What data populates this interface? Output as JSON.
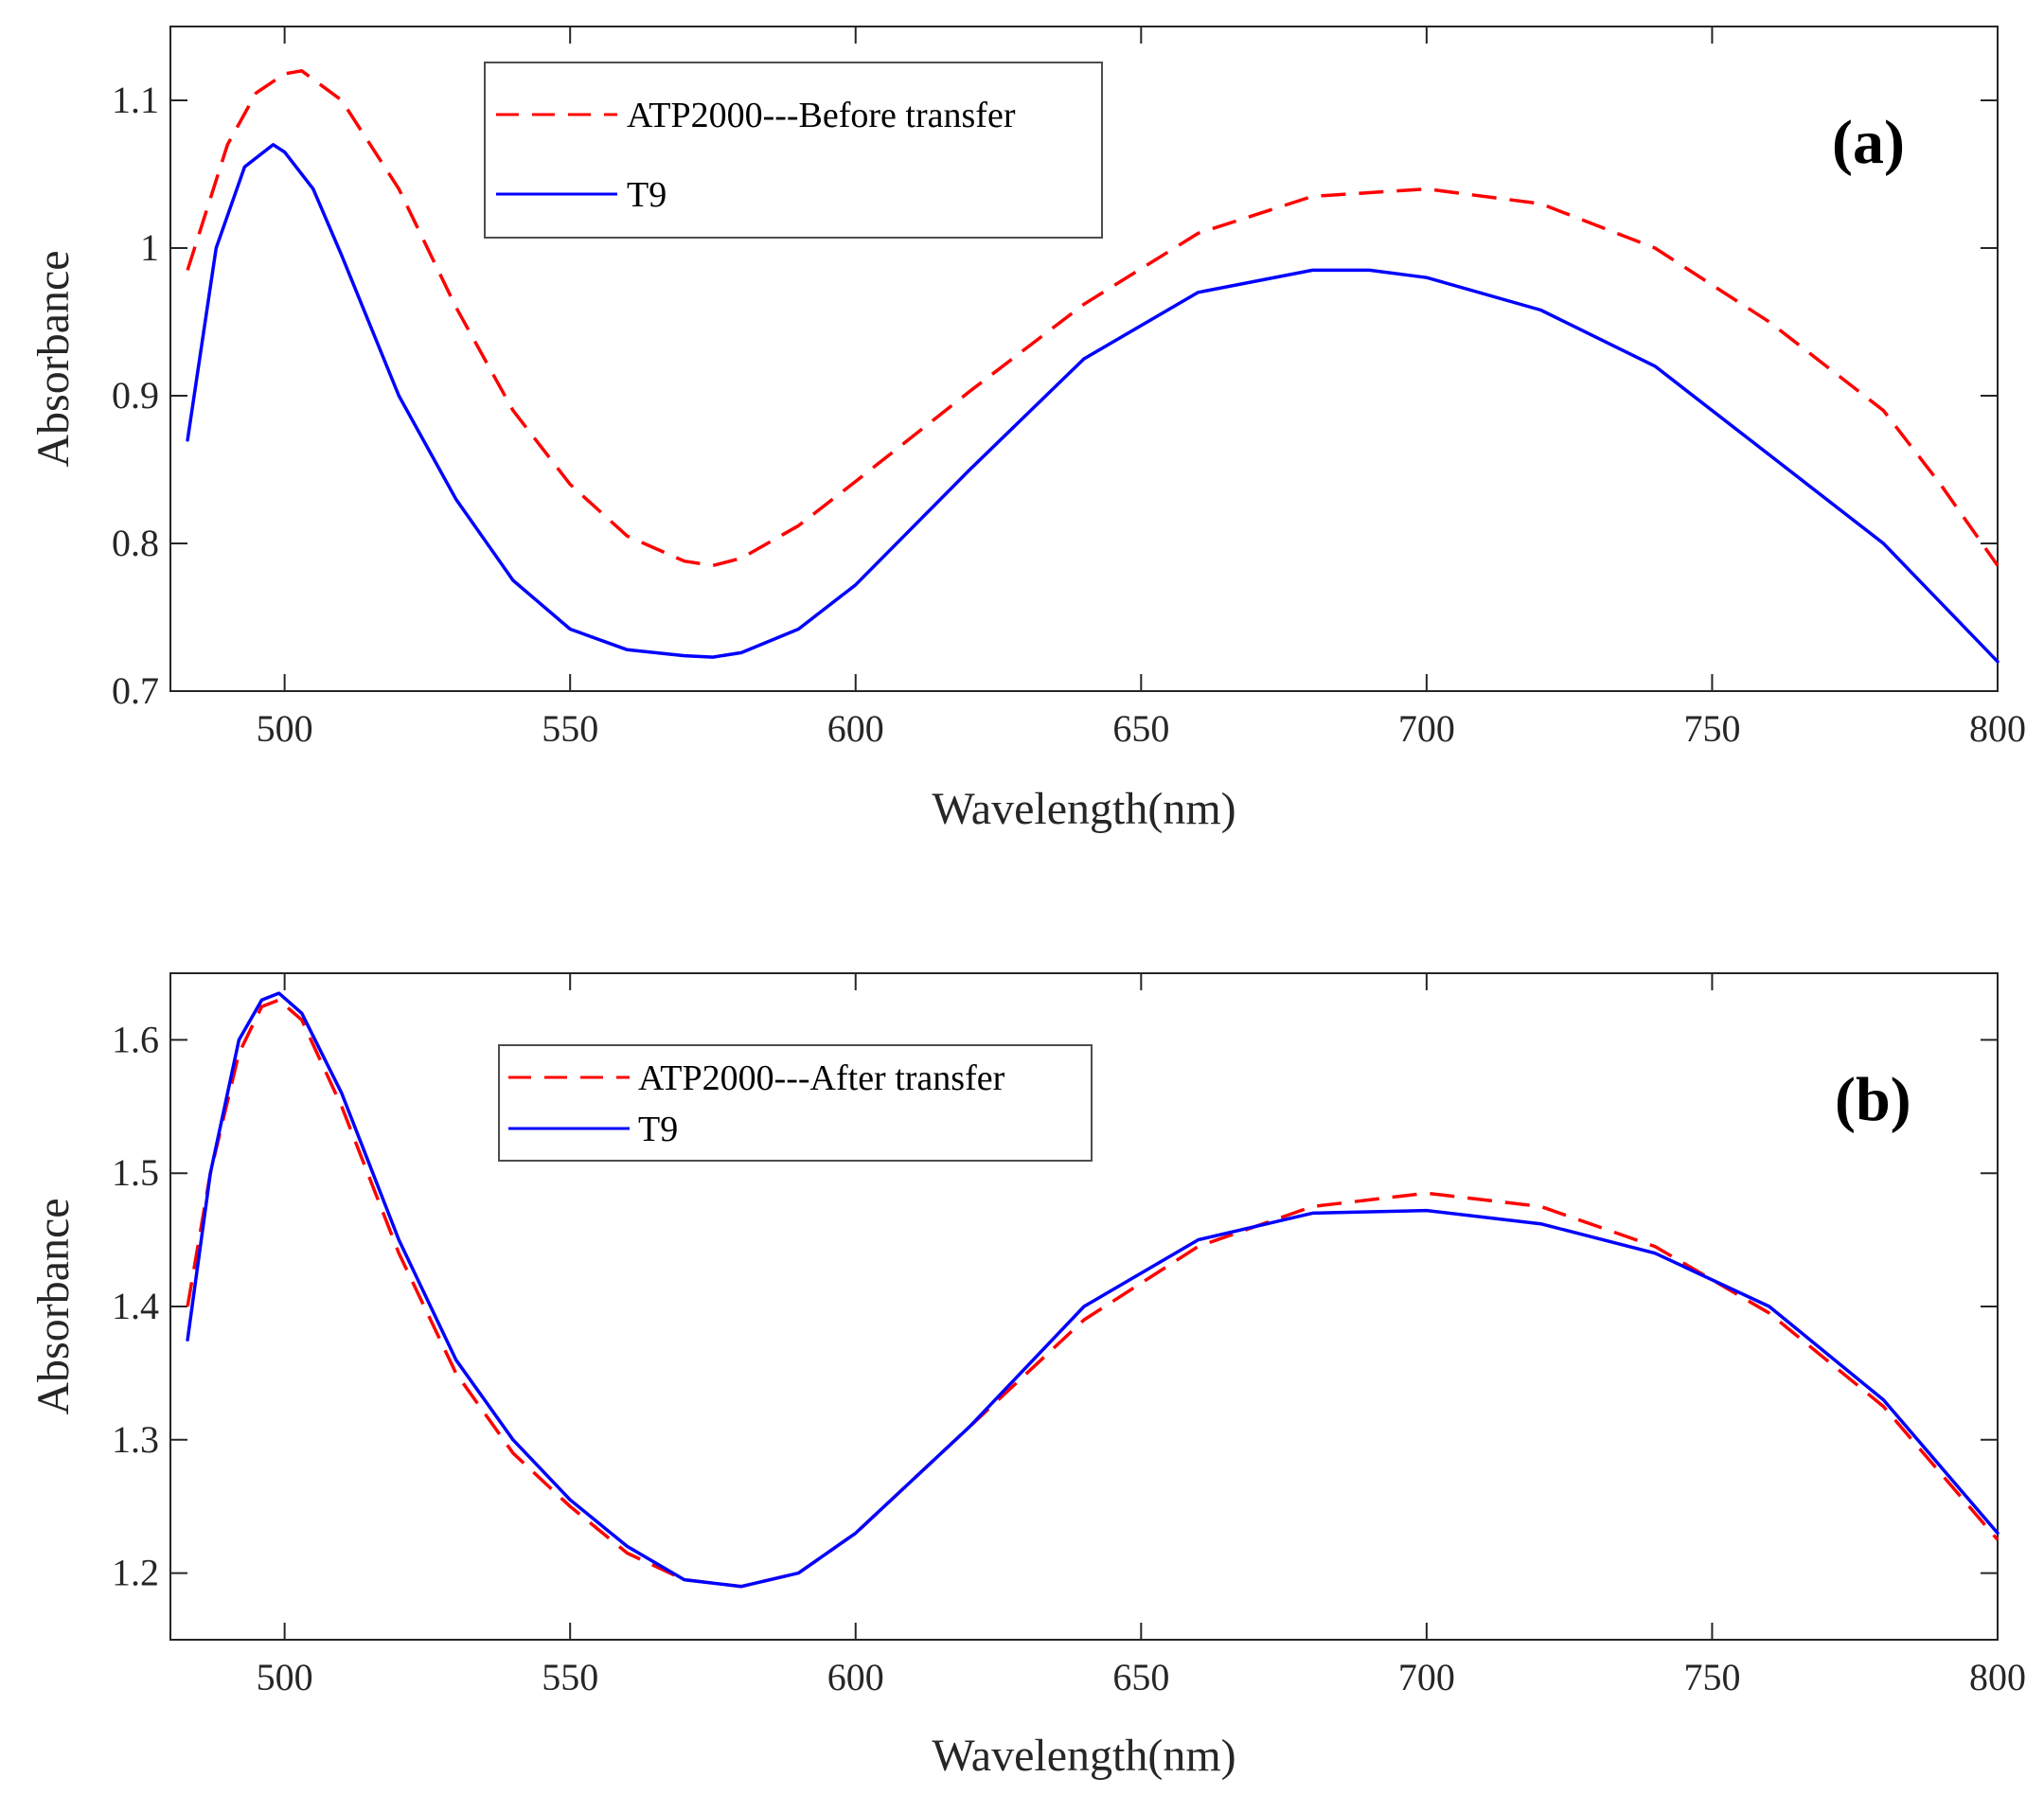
{
  "chart_data": [
    {
      "type": "line",
      "panel": "(a)",
      "xlabel": "Wavelength(nm)",
      "ylabel": "Absorbance",
      "xlim": [
        480,
        800
      ],
      "ylim": [
        0.7,
        1.15
      ],
      "xticks": [
        500,
        550,
        600,
        650,
        700,
        750,
        800
      ],
      "yticks": [
        0.7,
        0.8,
        0.9,
        1,
        1.1
      ],
      "ytick_labels": [
        "0.7",
        "0.8",
        "0.9",
        "1",
        "1.1"
      ],
      "legend_position": "top-left",
      "series": [
        {
          "name": "ATP2000---Before transfer",
          "color": "#ff0000",
          "style": "dashed",
          "x": [
            483,
            490,
            495,
            500,
            503,
            510,
            520,
            530,
            540,
            550,
            560,
            570,
            575,
            580,
            590,
            600,
            620,
            640,
            660,
            680,
            700,
            720,
            740,
            760,
            780,
            790,
            800
          ],
          "y": [
            0.985,
            1.07,
            1.105,
            1.118,
            1.12,
            1.1,
            1.04,
            0.96,
            0.89,
            0.84,
            0.805,
            0.788,
            0.785,
            0.79,
            0.812,
            0.842,
            0.903,
            0.962,
            1.01,
            1.035,
            1.04,
            1.03,
            1.0,
            0.95,
            0.89,
            0.84,
            0.785
          ]
        },
        {
          "name": "T9",
          "color": "#0000ff",
          "style": "solid",
          "x": [
            483,
            488,
            493,
            498,
            500,
            505,
            510,
            520,
            530,
            540,
            550,
            560,
            570,
            575,
            580,
            590,
            600,
            620,
            640,
            660,
            680,
            690,
            700,
            720,
            740,
            760,
            780,
            800
          ],
          "y": [
            0.87,
            1.0,
            1.055,
            1.07,
            1.065,
            1.04,
            0.995,
            0.9,
            0.83,
            0.775,
            0.742,
            0.728,
            0.724,
            0.723,
            0.726,
            0.742,
            0.772,
            0.85,
            0.925,
            0.97,
            0.985,
            0.985,
            0.98,
            0.958,
            0.92,
            0.86,
            0.8,
            0.72
          ]
        }
      ]
    },
    {
      "type": "line",
      "panel": "(b)",
      "xlabel": "Wavelength(nm)",
      "ylabel": "Absorbance",
      "xlim": [
        480,
        800
      ],
      "ylim": [
        1.15,
        1.65
      ],
      "xticks": [
        500,
        550,
        600,
        650,
        700,
        750,
        800
      ],
      "yticks": [
        1.2,
        1.3,
        1.4,
        1.5,
        1.6
      ],
      "ytick_labels": [
        "1.2",
        "1.3",
        "1.4",
        "1.5",
        "1.6"
      ],
      "legend_position": "top-left",
      "series": [
        {
          "name": "ATP2000---After transfer",
          "color": "#ff0000",
          "style": "dashed",
          "x": [
            483,
            487,
            492,
            496,
            499,
            503,
            510,
            520,
            530,
            540,
            550,
            560,
            570,
            580,
            590,
            600,
            620,
            640,
            660,
            680,
            700,
            720,
            740,
            760,
            780,
            800
          ],
          "y": [
            1.4,
            1.5,
            1.59,
            1.625,
            1.63,
            1.615,
            1.55,
            1.44,
            1.35,
            1.29,
            1.25,
            1.215,
            1.195,
            1.19,
            1.2,
            1.23,
            1.31,
            1.39,
            1.445,
            1.475,
            1.485,
            1.475,
            1.445,
            1.395,
            1.325,
            1.225
          ]
        },
        {
          "name": "T9",
          "color": "#0000ff",
          "style": "solid",
          "x": [
            483,
            487,
            492,
            496,
            499,
            503,
            510,
            520,
            530,
            540,
            550,
            560,
            570,
            580,
            590,
            600,
            620,
            640,
            660,
            680,
            700,
            720,
            740,
            760,
            780,
            800
          ],
          "y": [
            1.375,
            1.5,
            1.6,
            1.63,
            1.635,
            1.62,
            1.56,
            1.45,
            1.36,
            1.3,
            1.255,
            1.22,
            1.195,
            1.19,
            1.2,
            1.23,
            1.31,
            1.4,
            1.45,
            1.47,
            1.472,
            1.462,
            1.44,
            1.4,
            1.33,
            1.23
          ]
        }
      ]
    }
  ]
}
